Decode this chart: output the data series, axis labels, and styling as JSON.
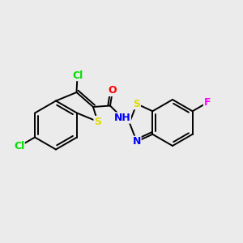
{
  "background_color": "#ebebeb",
  "atom_colors": {
    "Cl": "#00dd00",
    "S": "#dddd00",
    "O": "#ff0000",
    "N": "#0000ff",
    "F": "#ff00ff",
    "C": "#000000"
  },
  "bond_width": 1.4,
  "font_size": 9,
  "fig_width": 3.0,
  "fig_height": 3.0,
  "dpi": 100,
  "xlim": [
    0,
    10
  ],
  "ylim": [
    1.5,
    8.5
  ]
}
